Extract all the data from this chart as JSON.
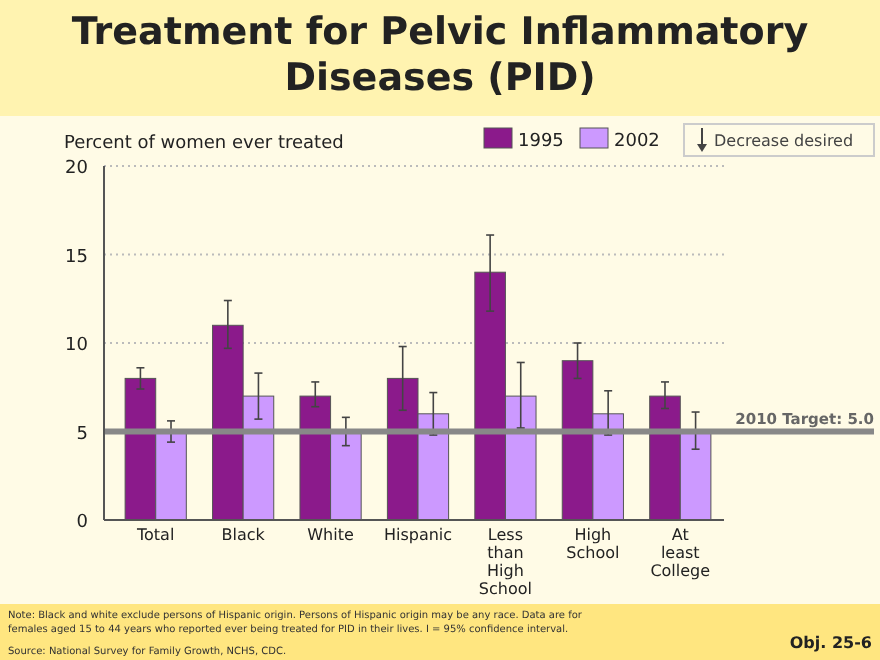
{
  "chart_data": {
    "type": "bar",
    "title": "Treatment for Pelvic Inflammatory Diseases (PID)",
    "ylabel": "Percent of women ever treated",
    "categories": [
      "Total",
      "Black",
      "White",
      "Hispanic",
      "Less than High School",
      "High School",
      "At least College"
    ],
    "series": [
      {
        "name": "1995",
        "color": "#8b1a8b",
        "values": [
          8,
          11,
          7,
          8,
          14,
          9,
          7
        ],
        "errors": [
          [
            7.4,
            8.6
          ],
          [
            9.7,
            12.4
          ],
          [
            6.4,
            7.8
          ],
          [
            6.2,
            9.8
          ],
          [
            11.8,
            16.1
          ],
          [
            8,
            10
          ],
          [
            6.3,
            7.8
          ]
        ]
      },
      {
        "name": "2002",
        "color": "#cc99ff",
        "values": [
          5,
          7,
          5,
          6,
          7,
          6,
          5
        ],
        "errors": [
          [
            4.4,
            5.6
          ],
          [
            5.7,
            8.3
          ],
          [
            4.2,
            5.8
          ],
          [
            4.8,
            7.2
          ],
          [
            5.2,
            8.9
          ],
          [
            4.8,
            7.3
          ],
          [
            4,
            6.1
          ]
        ]
      }
    ],
    "ylim": [
      0,
      20
    ],
    "yticks": [
      0,
      5,
      10,
      15,
      20
    ],
    "grid": "y",
    "legend": "top right",
    "ref_lines": [
      {
        "axis": "y",
        "value": 5,
        "label": "2010 Target: 5.0",
        "color": "#888888"
      }
    ],
    "annotations": [
      "Decrease desired",
      "Note: Black and white exclude persons of Hispanic origin. Persons of Hispanic origin may be any race. Data are for females aged 15 to 44 years who reported ever being treated for PID in their lives. I = 95% confidence interval.",
      "Source: National Survey for Family Growth, NCHS, CDC.",
      "Obj. 25-6"
    ]
  }
}
